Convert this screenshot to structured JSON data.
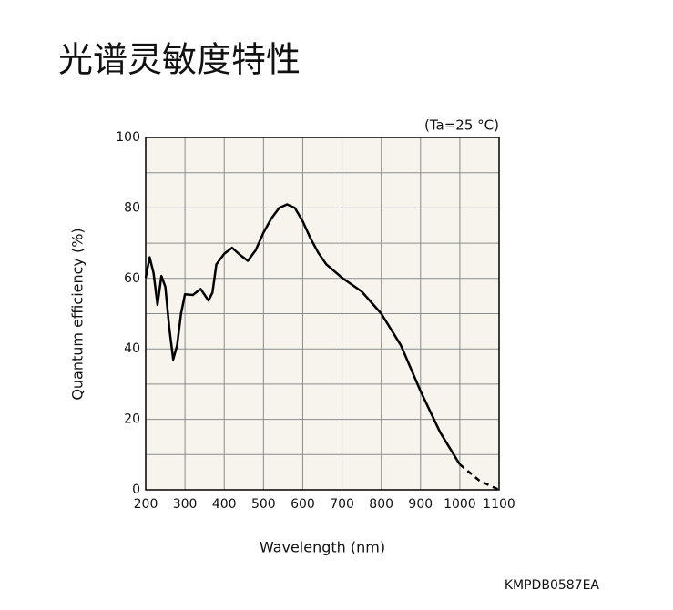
{
  "chart_data": {
    "type": "line",
    "title": "光谱灵敏度特性",
    "annotation": "(Ta=25 °C)",
    "ylabel": "Quantum efficiency (%)",
    "xlabel": "Wavelength (nm)",
    "footer": "KMPDB0587EA",
    "x": [
      200,
      210,
      220,
      230,
      240,
      250,
      260,
      270,
      280,
      290,
      300,
      320,
      340,
      360,
      370,
      380,
      400,
      420,
      440,
      460,
      480,
      500,
      520,
      540,
      560,
      580,
      600,
      620,
      640,
      660,
      700,
      750,
      800,
      850,
      900,
      950,
      1000,
      1050,
      1100
    ],
    "values": [
      60.2,
      66,
      61.5,
      52.5,
      60.7,
      57.6,
      46,
      37,
      41,
      50,
      55.5,
      55.3,
      57,
      53.7,
      56,
      64,
      67,
      68.7,
      66.7,
      65,
      68,
      73,
      77,
      80,
      81,
      80,
      76.2,
      71.3,
      67.2,
      64,
      60.2,
      56.3,
      50,
      41,
      28,
      16.3,
      7.2,
      2.6,
      0
    ],
    "dashed_from": 1000,
    "color": "#000000",
    "xlim": [
      200,
      1100
    ],
    "xticks": [
      200,
      300,
      400,
      500,
      600,
      700,
      800,
      900,
      1000,
      1100
    ],
    "ylim": [
      0,
      100
    ],
    "yticks": [
      0,
      20,
      40,
      60,
      80,
      100
    ],
    "yminorticks": [
      10,
      30,
      50,
      70,
      90
    ],
    "grid": true
  }
}
